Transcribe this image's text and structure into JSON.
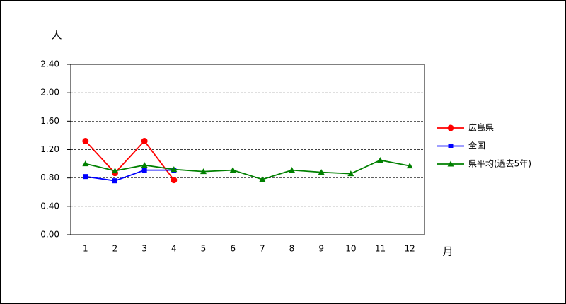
{
  "chart_data": {
    "type": "line",
    "y_label": "人",
    "x_label": "月",
    "categories": [
      "1",
      "2",
      "3",
      "4",
      "5",
      "6",
      "7",
      "8",
      "9",
      "10",
      "11",
      "12"
    ],
    "series": [
      {
        "name": "広島県",
        "color": "#ff0000",
        "marker": "circle",
        "values": [
          1.32,
          0.87,
          1.32,
          0.77,
          null,
          null,
          null,
          null,
          null,
          null,
          null,
          null
        ]
      },
      {
        "name": "全国",
        "color": "#0000ff",
        "marker": "square",
        "values": [
          0.82,
          0.76,
          0.91,
          0.91,
          null,
          null,
          null,
          null,
          null,
          null,
          null,
          null
        ]
      },
      {
        "name": "県平均(過去5年)",
        "color": "#008000",
        "marker": "triangle",
        "values": [
          1.0,
          0.9,
          0.98,
          0.92,
          0.89,
          0.91,
          0.78,
          0.91,
          0.88,
          0.86,
          1.05,
          0.97
        ]
      }
    ],
    "ylim": [
      0,
      2.4
    ],
    "yticks": [
      {
        "value": 0,
        "label": "0.00"
      },
      {
        "value": 0.4,
        "label": "0.40"
      },
      {
        "value": 0.8,
        "label": "0.80"
      },
      {
        "value": 1.2,
        "label": "1.20"
      },
      {
        "value": 1.6,
        "label": "1.60"
      },
      {
        "value": 2.0,
        "label": "2.00"
      },
      {
        "value": 2.4,
        "label": "2.40"
      }
    ],
    "grid": true,
    "legend": "right"
  }
}
